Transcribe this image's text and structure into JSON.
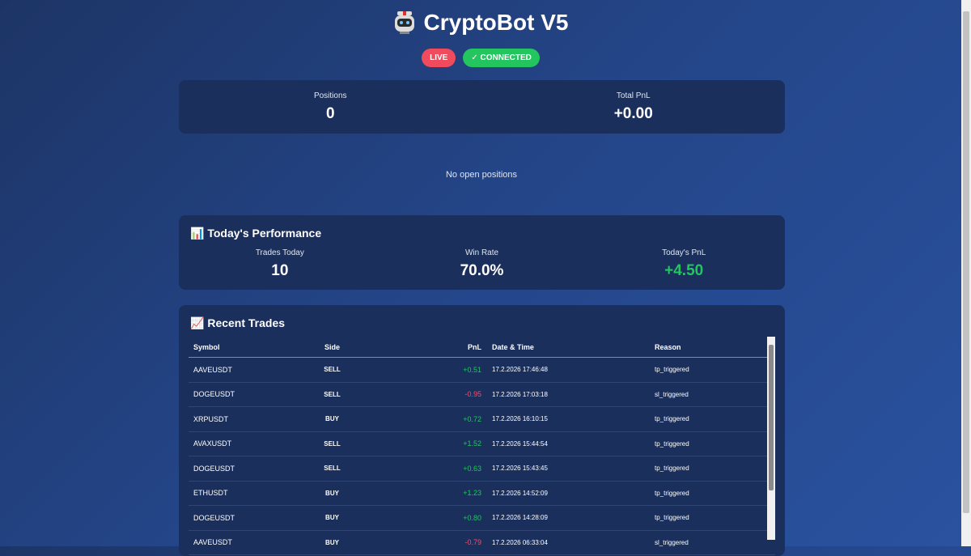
{
  "header": {
    "title": "CryptoBot V5",
    "badges": [
      "LIVE",
      "✓ CONNECTED"
    ]
  },
  "summary": [
    {
      "label": "Positions",
      "value": "0"
    },
    {
      "label": "Total PnL",
      "value": "+0.00"
    }
  ],
  "positions_message": "No open positions",
  "performance": {
    "title": "Today's Performance",
    "stats": [
      {
        "label": "Trades Today",
        "value": "10"
      },
      {
        "label": "Win Rate",
        "value": "70.0%"
      },
      {
        "label": "Today's PnL",
        "value": "+4.50"
      }
    ]
  },
  "recent_trades": {
    "title": "Recent Trades",
    "columns": [
      "Symbol",
      "Side",
      "PnL",
      "Date & Time",
      "Reason"
    ],
    "rows": [
      [
        "AAVEUSDT",
        "SELL",
        "+0.51",
        "17.2.2026 17:46:48",
        "tp_triggered"
      ],
      [
        "DOGEUSDT",
        "SELL",
        "-0.95",
        "17.2.2026 17:03:18",
        "sl_triggered"
      ],
      [
        "XRPUSDT",
        "BUY",
        "+0.72",
        "17.2.2026 16:10:15",
        "tp_triggered"
      ],
      [
        "AVAXUSDT",
        "SELL",
        "+1.52",
        "17.2.2026 15:44:54",
        "tp_triggered"
      ],
      [
        "DOGEUSDT",
        "SELL",
        "+0.63",
        "17.2.2026 15:43:45",
        "tp_triggered"
      ],
      [
        "ETHUSDT",
        "BUY",
        "+1.23",
        "17.2.2026 14:52:09",
        "tp_triggered"
      ],
      [
        "DOGEUSDT",
        "BUY",
        "+0.80",
        "17.2.2026 14:28:09",
        "tp_triggered"
      ],
      [
        "AAVEUSDT",
        "BUY",
        "-0.79",
        "17.2.2026 06:33:04",
        "sl_triggered"
      ]
    ]
  }
}
